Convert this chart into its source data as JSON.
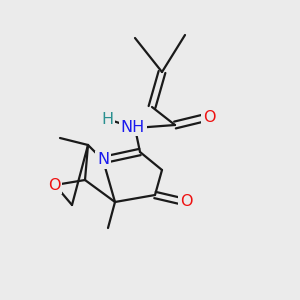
{
  "background_color": "#ebebeb",
  "bond_color": "#1a1a1a",
  "bond_width": 1.6,
  "dbo": 0.012,
  "figsize": [
    3.0,
    3.0
  ],
  "dpi": 100,
  "colors": {
    "N": "#1a1aee",
    "O": "#ee1111",
    "H": "#2a9090",
    "C": "#1a1a1a"
  }
}
